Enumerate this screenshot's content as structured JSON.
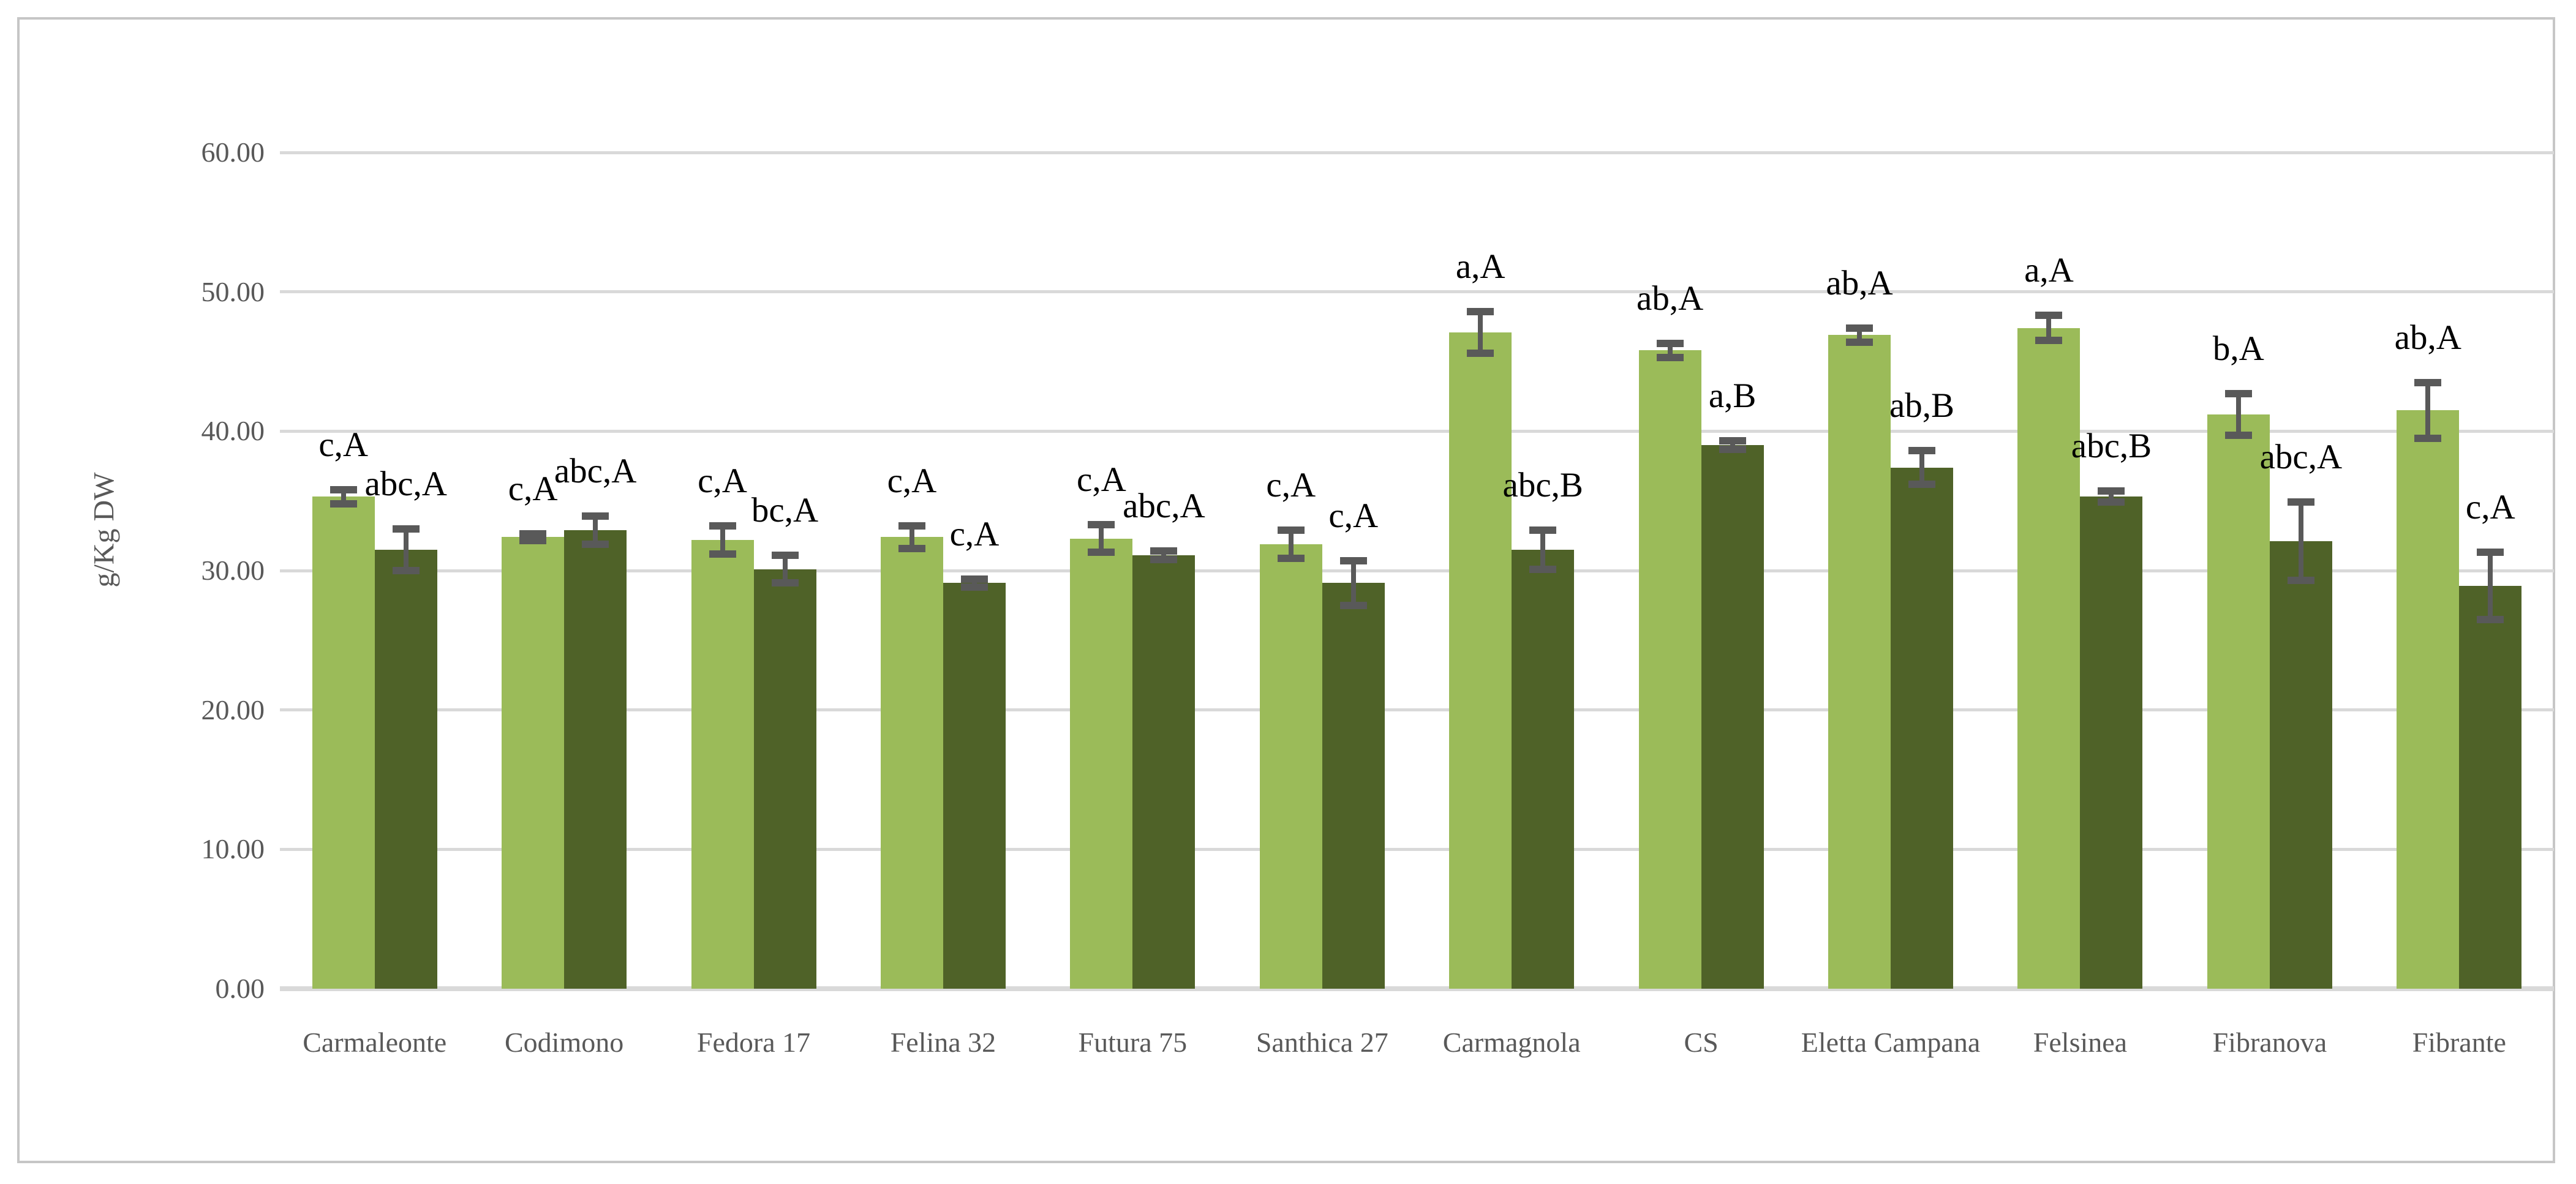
{
  "chart_data": {
    "type": "bar",
    "title": "",
    "ylabel": "g/Kg DW",
    "xlabel": "",
    "ylim": [
      0,
      60
    ],
    "ytick_step": 10,
    "ytick_labels": [
      "0.00",
      "10.00",
      "20.00",
      "30.00",
      "40.00",
      "50.00",
      "60.00"
    ],
    "grid": true,
    "legend_position": "none",
    "categories": [
      "Carmaleonte",
      "Codimono",
      "Fedora 17",
      "Felina 32",
      "Futura 75",
      "Santhica 27",
      "Carmagnola",
      "CS",
      "Eletta Campana",
      "Felsinea",
      "Fibranova",
      "Fibrante"
    ],
    "series": [
      {
        "name": "series-1-light-green",
        "color": "#9BBB59",
        "values": [
          35.3,
          32.4,
          32.2,
          32.4,
          32.3,
          31.9,
          47.1,
          45.8,
          46.9,
          47.4,
          41.2,
          41.5
        ],
        "errors": [
          0.5,
          0.25,
          1.0,
          0.8,
          1.0,
          1.0,
          1.5,
          0.5,
          0.5,
          0.9,
          1.5,
          2.0
        ],
        "point_labels": [
          "c,A",
          "c,A",
          "c,A",
          "c,A",
          "c,A",
          "c,A",
          "a,A",
          "ab,A",
          "ab,A",
          "a,A",
          "b,A",
          "ab,A"
        ]
      },
      {
        "name": "series-2-dark-green",
        "color": "#4F6228",
        "values": [
          31.5,
          32.9,
          30.1,
          29.1,
          31.1,
          29.1,
          31.5,
          39.0,
          37.4,
          35.3,
          32.1,
          28.9
        ],
        "errors": [
          1.5,
          1.0,
          1.0,
          0.3,
          0.3,
          1.6,
          1.4,
          0.3,
          1.2,
          0.4,
          2.8,
          2.4
        ],
        "point_labels": [
          "abc,A",
          "abc,A",
          "bc,A",
          "c,A",
          "abc,A",
          "c,A",
          "abc,B",
          "a,B",
          "ab,B",
          "abc,B",
          "abc,A",
          "c,A"
        ]
      }
    ]
  },
  "colors": {
    "background": "#ffffff",
    "frame_border": "#c6c6c6",
    "gridline": "#d9d9d9",
    "axis_text": "#595959",
    "error_bar": "#595959",
    "significance_text": "#000000",
    "bar_light": "#9BBB59",
    "bar_dark": "#4F6228"
  }
}
